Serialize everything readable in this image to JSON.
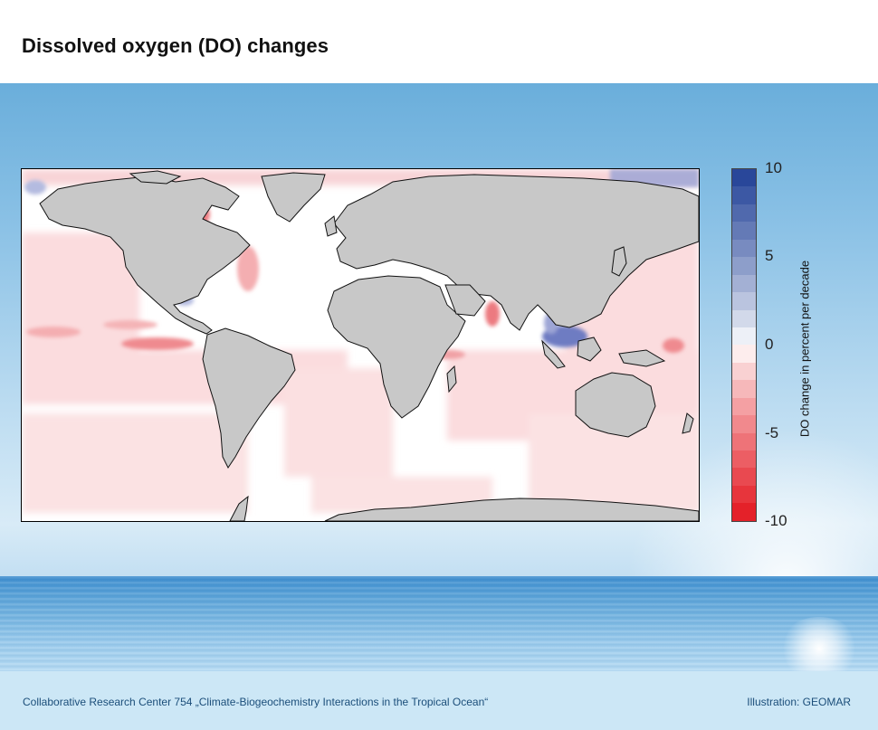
{
  "title": "Dissolved oxygen (DO) changes",
  "colorbar": {
    "label": "DO change in percent per decade",
    "ticks": [
      "10",
      "5",
      "0",
      "-5",
      "-10"
    ],
    "min": -10,
    "max": 10,
    "colors": {
      "positive_max": "#1f3f96",
      "zero": "#ffffff",
      "negative_max": "#e3171f"
    }
  },
  "map": {
    "land_color": "#c8c8c8",
    "ocean_color": "#ffffff"
  },
  "footer": {
    "left": "Collaborative Research Center 754 „Climate-Biogeochemistry Interactions in the Tropical Ocean“",
    "right": "Illustration: GEOMAR"
  }
}
